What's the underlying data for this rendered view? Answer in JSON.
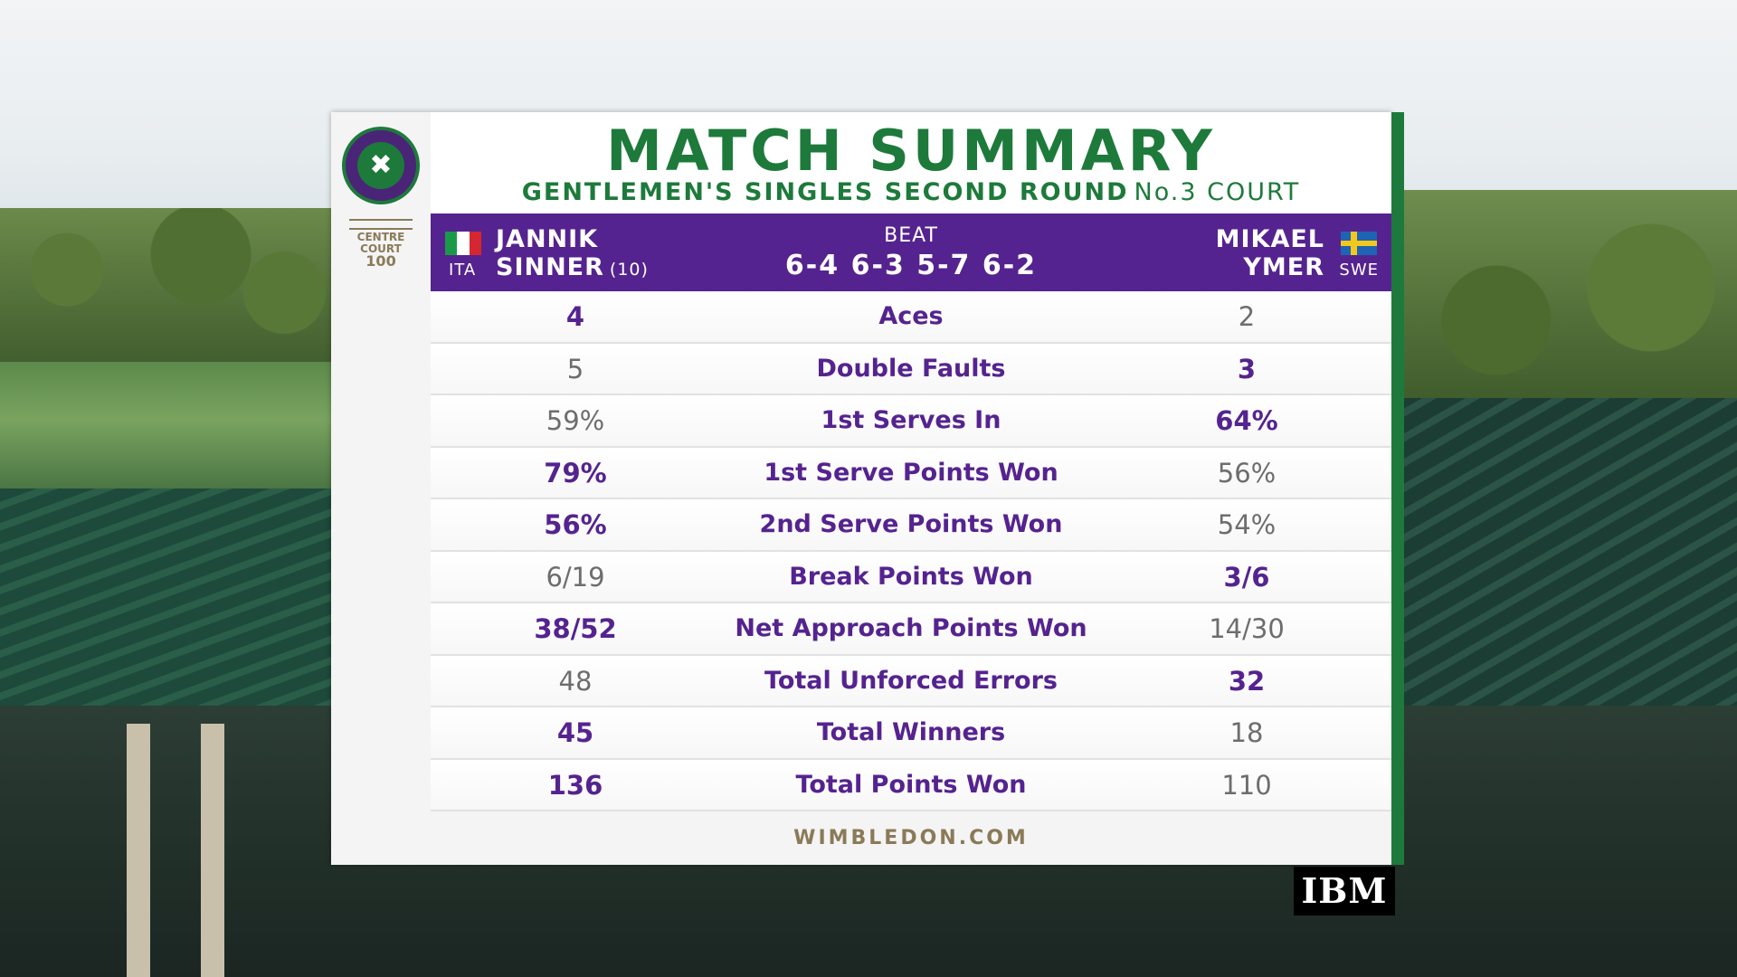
{
  "header": {
    "title": "MATCH SUMMARY",
    "event": "GENTLEMEN'S SINGLES SECOND ROUND",
    "court": "No.3 COURT"
  },
  "branding": {
    "centre_court_line1": "CENTRE",
    "centre_court_line2": "COURT",
    "centre_court_number": "100",
    "footer_site": "WIMBLEDON.COM",
    "sponsor": "IBM"
  },
  "match": {
    "player1": {
      "first": "JANNIK",
      "last": "SINNER",
      "seed": "(10)",
      "nation": "ITA"
    },
    "player2": {
      "first": "MIKAEL",
      "last": "YMER",
      "nation": "SWE"
    },
    "result_word": "BEAT",
    "score": "6-4 6-3 5-7 6-2"
  },
  "stats": [
    {
      "label": "Aces",
      "p1": "4",
      "p2": "2",
      "leader": "p1"
    },
    {
      "label": "Double Faults",
      "p1": "5",
      "p2": "3",
      "leader": "p2"
    },
    {
      "label": "1st Serves In",
      "p1": "59%",
      "p2": "64%",
      "leader": "p2"
    },
    {
      "label": "1st Serve Points Won",
      "p1": "79%",
      "p2": "56%",
      "leader": "p1"
    },
    {
      "label": "2nd Serve Points Won",
      "p1": "56%",
      "p2": "54%",
      "leader": "p1"
    },
    {
      "label": "Break Points Won",
      "p1": "6/19",
      "p2": "3/6",
      "leader": "p2"
    },
    {
      "label": "Net Approach Points Won",
      "p1": "38/52",
      "p2": "14/30",
      "leader": "p1"
    },
    {
      "label": "Total Unforced Errors",
      "p1": "48",
      "p2": "32",
      "leader": "p2"
    },
    {
      "label": "Total Winners",
      "p1": "45",
      "p2": "18",
      "leader": "p1"
    },
    {
      "label": "Total Points Won",
      "p1": "136",
      "p2": "110",
      "leader": "p1"
    }
  ],
  "colors": {
    "green": "#1d7a3b",
    "purple": "#55238f",
    "gold": "#8a7a58"
  },
  "icons": {
    "logo": "wimbledon-crossed-rackets-icon",
    "flag1": "italy-flag-icon",
    "flag2": "sweden-flag-icon"
  }
}
